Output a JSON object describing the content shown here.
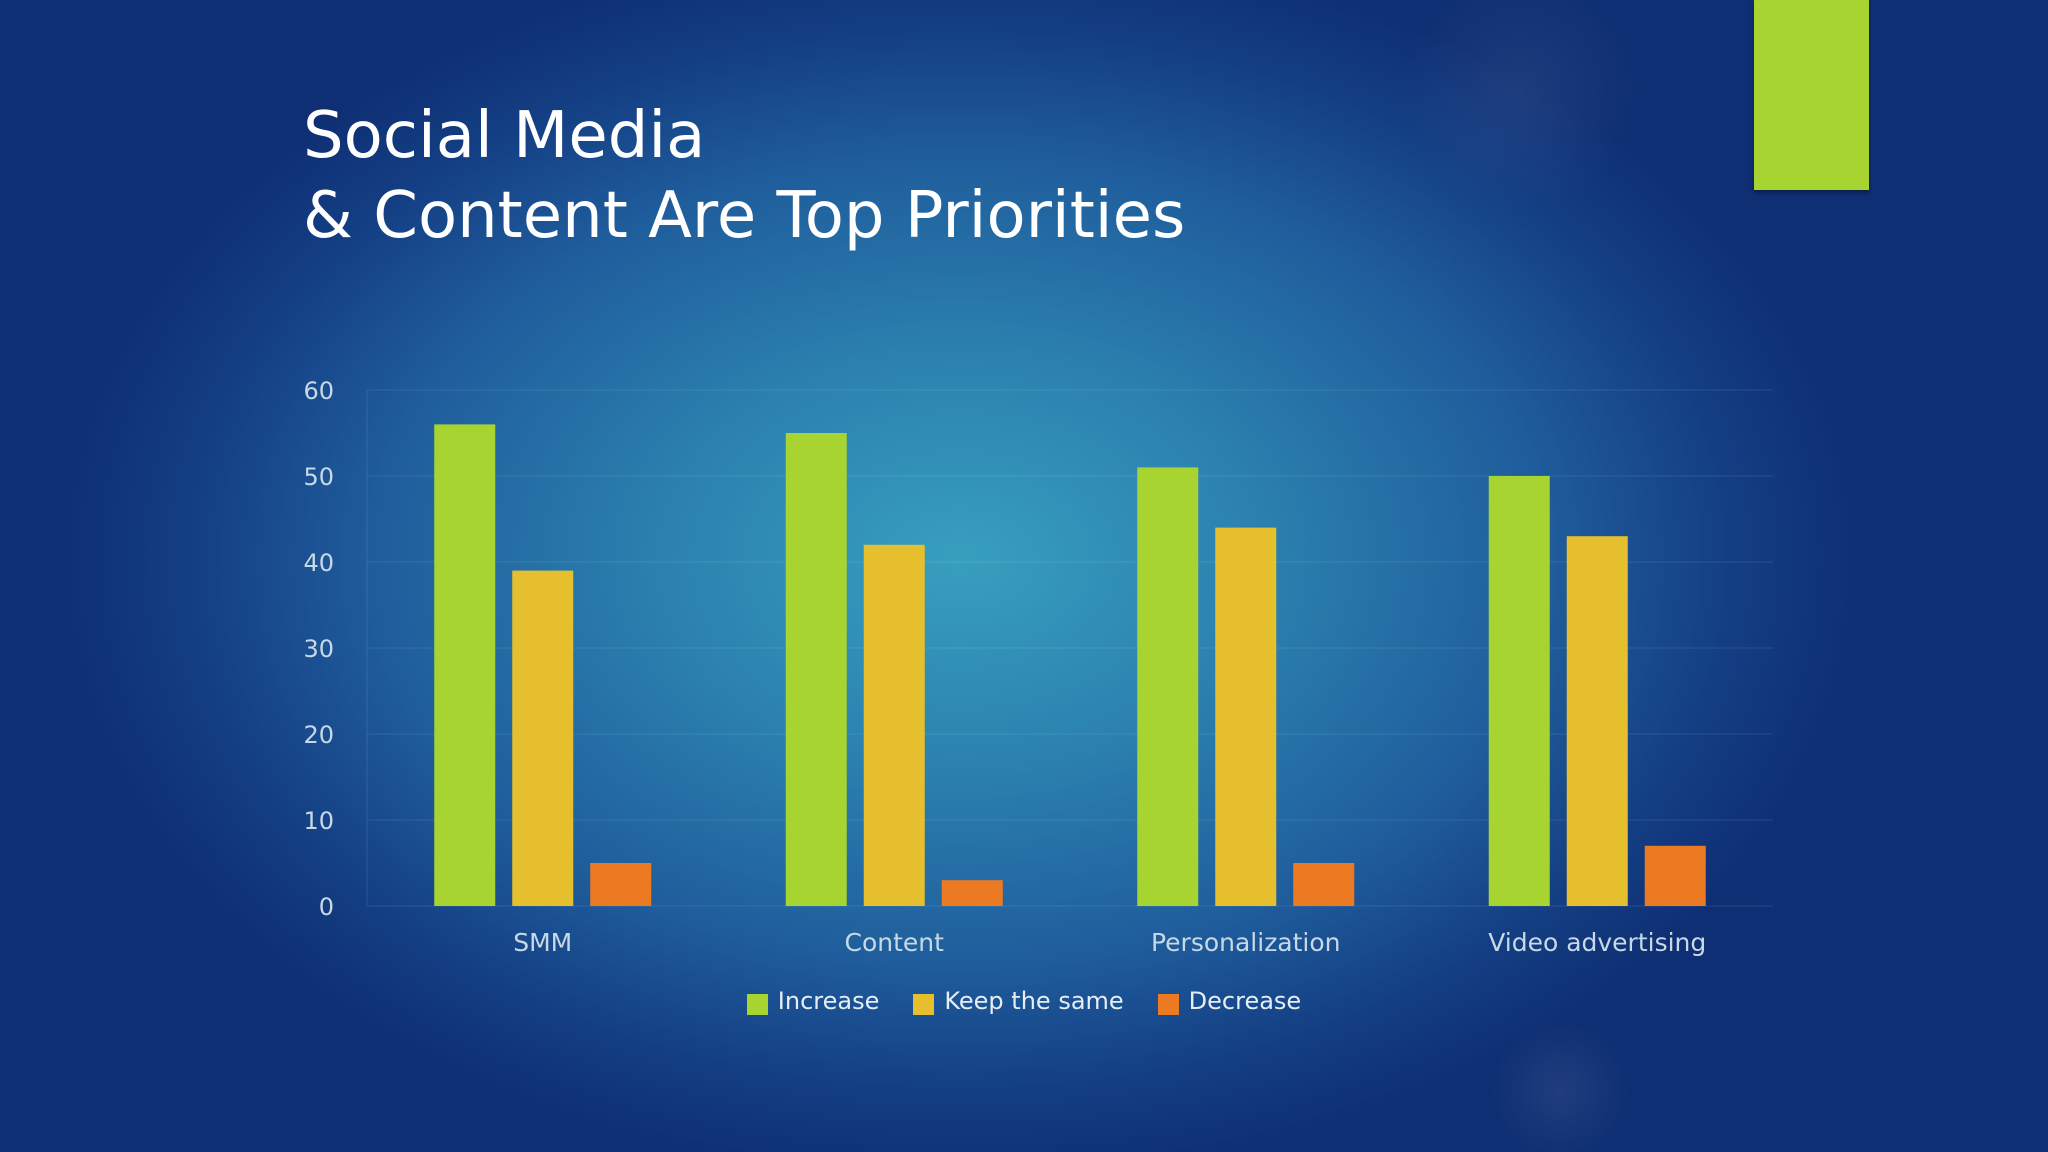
{
  "slide": {
    "title_line1": "Social Media",
    "title_line2": "& Content Are Top Priorities"
  },
  "colors": {
    "accent": "#a8d431",
    "increase": "#a8d431",
    "keep": "#e6bf2e",
    "decrease": "#ec7a22",
    "axis_text": "#c7d9e6",
    "gridline": "rgba(255,255,255,0.10)"
  },
  "chart_data": {
    "type": "bar",
    "title": "",
    "xlabel": "",
    "ylabel": "",
    "categories": [
      "SMM",
      "Content",
      "Personalization",
      "Video advertising"
    ],
    "series": [
      {
        "name": "Increase",
        "values": [
          56,
          55,
          51,
          50
        ],
        "color": "#a8d431"
      },
      {
        "name": "Keep the same",
        "values": [
          39,
          42,
          44,
          43
        ],
        "color": "#e6bf2e"
      },
      {
        "name": "Decrease",
        "values": [
          5,
          3,
          5,
          7
        ],
        "color": "#ec7a22"
      }
    ],
    "ylim": [
      0,
      60
    ],
    "yticks": [
      0,
      10,
      20,
      30,
      40,
      50,
      60
    ],
    "grid": true,
    "legend": "bottom"
  }
}
